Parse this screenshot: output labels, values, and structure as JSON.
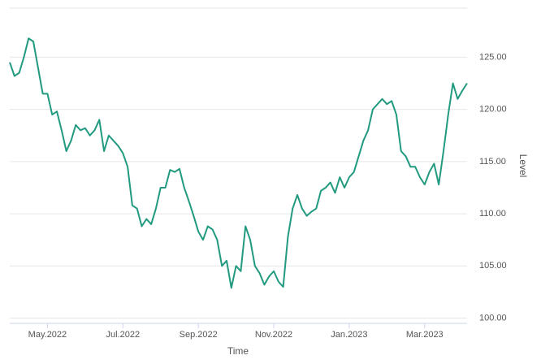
{
  "chart_data": {
    "type": "line",
    "x_label": "Time",
    "y_label": "Level",
    "categories": [
      null,
      null,
      null,
      null,
      null,
      null,
      null,
      null,
      "May.2022",
      null,
      null,
      null,
      null,
      null,
      null,
      null,
      null,
      null,
      null,
      null,
      null,
      null,
      null,
      null,
      "Jul.2022",
      null,
      null,
      null,
      null,
      null,
      null,
      null,
      null,
      null,
      null,
      null,
      null,
      null,
      null,
      null,
      "Sep.2022",
      null,
      null,
      null,
      null,
      null,
      null,
      null,
      null,
      null,
      null,
      null,
      null,
      null,
      null,
      null,
      "Nov.2022",
      null,
      null,
      null,
      null,
      null,
      null,
      null,
      null,
      null,
      null,
      null,
      null,
      null,
      null,
      null,
      "Jan.2023",
      null,
      null,
      null,
      null,
      null,
      null,
      null,
      null,
      null,
      null,
      null,
      null,
      null,
      null,
      null,
      "Mar.2023",
      null,
      null,
      null,
      null,
      null,
      null,
      null,
      null,
      null
    ],
    "values": [
      124.5,
      123.2,
      123.5,
      125.0,
      126.8,
      126.5,
      124.0,
      121.5,
      121.5,
      119.5,
      119.8,
      118.0,
      116.0,
      117.0,
      118.5,
      118.0,
      118.2,
      117.5,
      118.0,
      119.0,
      116.0,
      117.5,
      117.0,
      116.5,
      115.8,
      114.5,
      110.8,
      110.5,
      108.8,
      109.5,
      109.0,
      110.5,
      112.5,
      112.5,
      114.2,
      114.0,
      114.3,
      112.5,
      111.2,
      109.8,
      108.3,
      107.5,
      108.8,
      108.5,
      107.5,
      105.0,
      105.5,
      102.9,
      105.0,
      104.5,
      108.8,
      107.5,
      105.0,
      104.3,
      103.2,
      104.0,
      104.5,
      103.5,
      103.0,
      107.8,
      110.5,
      111.8,
      110.5,
      109.8,
      110.2,
      110.5,
      112.2,
      112.5,
      113.0,
      112.0,
      113.5,
      112.5,
      113.5,
      114.0,
      115.5,
      117.0,
      118.0,
      120.0,
      120.5,
      121.0,
      120.5,
      120.8,
      119.5,
      116.0,
      115.5,
      114.5,
      114.5,
      113.5,
      112.8,
      114.0,
      114.8,
      112.8,
      116.0,
      119.5,
      122.5,
      121.0,
      121.8,
      122.5
    ],
    "color": "#219a7f",
    "ylim": [
      99.5,
      129.7
    ],
    "yticks": [
      {
        "value": 100,
        "label": "100.00"
      },
      {
        "value": 105,
        "label": "105.00"
      },
      {
        "value": 110,
        "label": "110.00"
      },
      {
        "value": 115,
        "label": "115.00"
      },
      {
        "value": 120,
        "label": "120.00"
      },
      {
        "value": 125,
        "label": "125.00"
      }
    ],
    "grid": true
  }
}
